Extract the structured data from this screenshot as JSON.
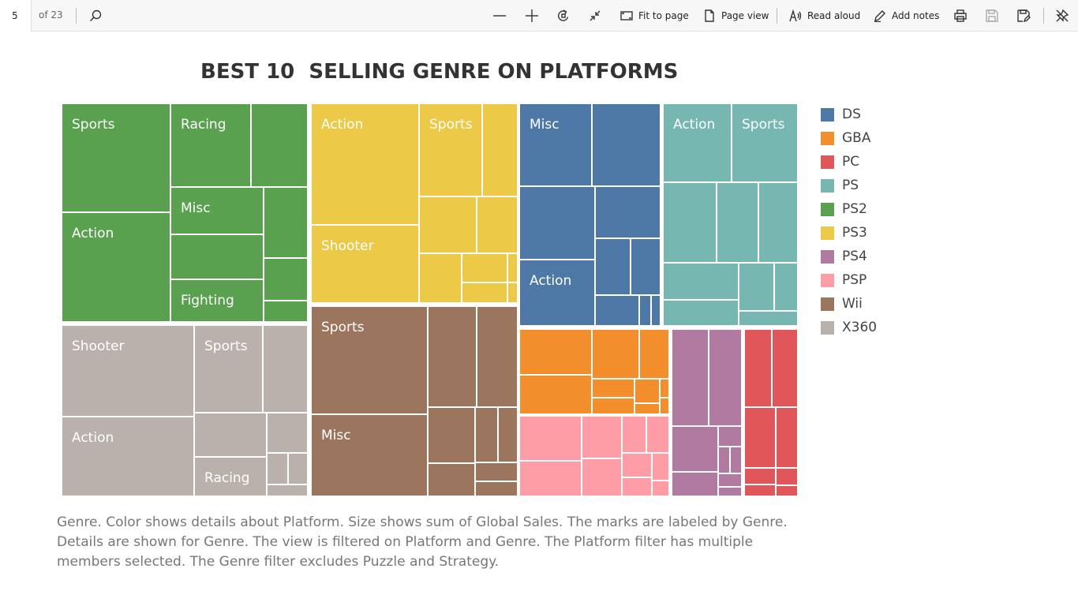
{
  "toolbar": {
    "page_number": "5",
    "page_total": "of 23",
    "fit_to_page": "Fit to page",
    "page_view": "Page view",
    "read_aloud": "Read aloud",
    "add_notes": "Add notes"
  },
  "chart": {
    "title": "BEST 10  SELLING GENRE ON PLATFORMS",
    "caption": "Genre.  Color shows details about Platform.  Size shows sum of Global Sales.  The marks are labeled by Genre. Details are shown for Genre. The view is filtered on Platform and Genre. The Platform filter has multiple members selected. The Genre filter excludes Puzzle and Strategy."
  },
  "colors": {
    "DS": "#4e79a7",
    "GBA": "#f28e2b",
    "PC": "#e15759",
    "PS": "#76b7b2",
    "PS2": "#59a14f",
    "PS3": "#edc948",
    "PS4": "#b07aa1",
    "PSP": "#ff9da7",
    "Wii": "#9c755f",
    "X360": "#bab0ac"
  },
  "chart_data": {
    "type": "treemap",
    "value_measure": "sum of Global Sales",
    "legend": [
      "DS",
      "GBA",
      "PC",
      "PS",
      "PS2",
      "PS3",
      "PS4",
      "PSP",
      "Wii",
      "X360"
    ],
    "legend_position": "right",
    "labeled_marks": [
      {
        "platform": "PS2",
        "genre": "Sports"
      },
      {
        "platform": "PS2",
        "genre": "Racing"
      },
      {
        "platform": "PS2",
        "genre": "Action"
      },
      {
        "platform": "PS2",
        "genre": "Misc"
      },
      {
        "platform": "PS2",
        "genre": "Fighting"
      },
      {
        "platform": "PS3",
        "genre": "Action"
      },
      {
        "platform": "PS3",
        "genre": "Sports"
      },
      {
        "platform": "PS3",
        "genre": "Shooter"
      },
      {
        "platform": "DS",
        "genre": "Misc"
      },
      {
        "platform": "DS",
        "genre": "Action"
      },
      {
        "platform": "PS",
        "genre": "Action"
      },
      {
        "platform": "PS",
        "genre": "Sports"
      },
      {
        "platform": "X360",
        "genre": "Shooter"
      },
      {
        "platform": "X360",
        "genre": "Sports"
      },
      {
        "platform": "X360",
        "genre": "Action"
      },
      {
        "platform": "X360",
        "genre": "Racing"
      },
      {
        "platform": "Wii",
        "genre": "Sports"
      },
      {
        "platform": "Wii",
        "genre": "Misc"
      }
    ]
  }
}
